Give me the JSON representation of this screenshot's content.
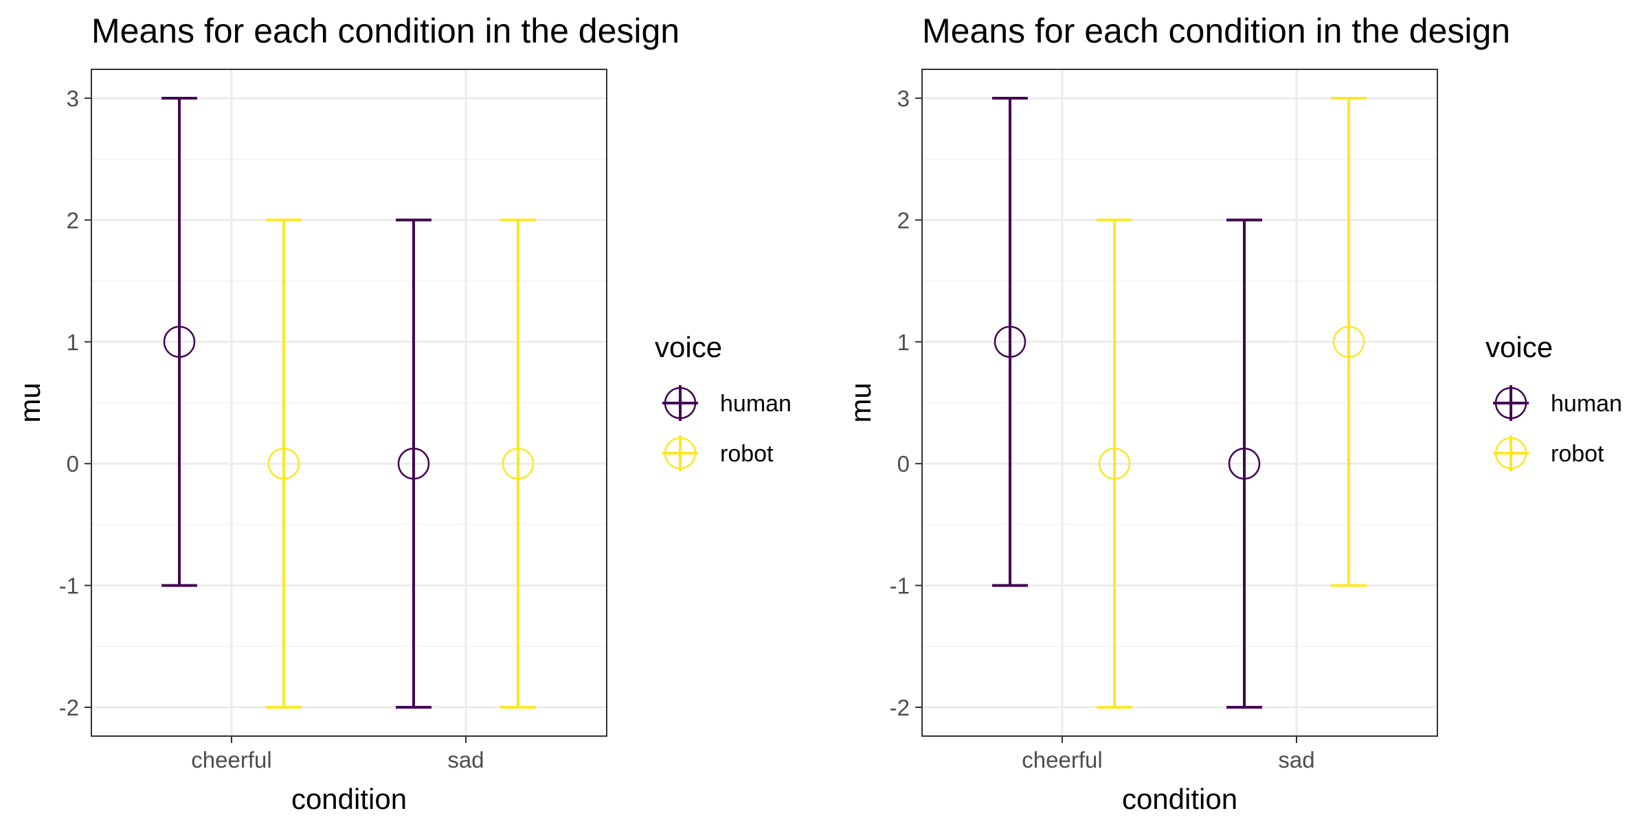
{
  "colors": {
    "human": "#440154",
    "robot": "#FDE725",
    "grid_major": "#EBEBEB",
    "grid_minor": "#F2F2F2",
    "panel_border": "#333333",
    "tick_text": "#4D4D4D"
  },
  "chart_data": [
    {
      "type": "errorbar",
      "title": "Means for each condition in the design",
      "xlabel": "condition",
      "ylabel": "mu",
      "categories": [
        "cheerful",
        "sad"
      ],
      "yticks": [
        "3",
        "2",
        "1",
        "0",
        "-1",
        "-2"
      ],
      "ylim": [
        -2.25,
        3.25
      ],
      "grid": true,
      "legend": {
        "title": "voice",
        "position": "right",
        "entries": [
          "human",
          "robot"
        ]
      },
      "series": [
        {
          "name": "human",
          "mean": [
            1,
            0
          ],
          "lower": [
            -1,
            -2
          ],
          "upper": [
            3,
            2
          ]
        },
        {
          "name": "robot",
          "mean": [
            0,
            0
          ],
          "lower": [
            -2,
            -2
          ],
          "upper": [
            2,
            2
          ]
        }
      ]
    },
    {
      "type": "errorbar",
      "title": "Means for each condition in the design",
      "xlabel": "condition",
      "ylabel": "mu",
      "categories": [
        "cheerful",
        "sad"
      ],
      "yticks": [
        "3",
        "2",
        "1",
        "0",
        "-1",
        "-2"
      ],
      "ylim": [
        -2.25,
        3.25
      ],
      "grid": true,
      "legend": {
        "title": "voice",
        "position": "right",
        "entries": [
          "human",
          "robot"
        ]
      },
      "series": [
        {
          "name": "human",
          "mean": [
            1,
            0
          ],
          "lower": [
            -1,
            -2
          ],
          "upper": [
            3,
            2
          ]
        },
        {
          "name": "robot",
          "mean": [
            0,
            1
          ],
          "lower": [
            -2,
            -1
          ],
          "upper": [
            2,
            3
          ]
        }
      ]
    }
  ]
}
